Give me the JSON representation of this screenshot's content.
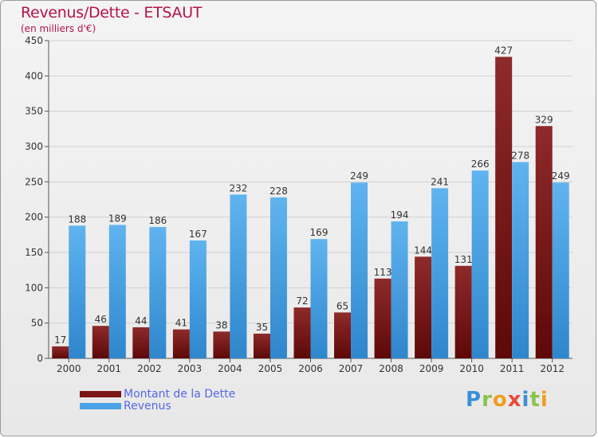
{
  "chart_data": {
    "type": "bar",
    "title": "Revenus/Dette - ETSAUT",
    "subtitle": "(en milliers d'€)",
    "categories": [
      "2000",
      "2001",
      "2002",
      "2003",
      "2004",
      "2005",
      "2006",
      "2007",
      "2008",
      "2009",
      "2010",
      "2011",
      "2012"
    ],
    "series": [
      {
        "name": "Montant de la Dette",
        "color": "#7a1616",
        "values": [
          17,
          46,
          44,
          41,
          38,
          35,
          72,
          65,
          113,
          144,
          131,
          427,
          329
        ]
      },
      {
        "name": "Revenus",
        "color": "#4aa3e6",
        "values": [
          188,
          189,
          186,
          167,
          232,
          228,
          169,
          249,
          194,
          241,
          266,
          278,
          249
        ]
      }
    ],
    "ylim": [
      0,
      450
    ],
    "yticks": [
      0,
      50,
      100,
      150,
      200,
      250,
      300,
      350,
      400,
      450
    ],
    "grid": true,
    "legend_position": "bottom-left"
  },
  "brand": {
    "letters": [
      {
        "ch": "P",
        "color": "#3b8fd6"
      },
      {
        "ch": "r",
        "color": "#8bc34a"
      },
      {
        "ch": "o",
        "color": "#f39c1f"
      },
      {
        "ch": "x",
        "color": "#e74c3c"
      },
      {
        "ch": "i",
        "color": "#3b8fd6"
      },
      {
        "ch": "t",
        "color": "#8bc34a"
      },
      {
        "ch": "i",
        "color": "#f39c1f"
      }
    ]
  }
}
